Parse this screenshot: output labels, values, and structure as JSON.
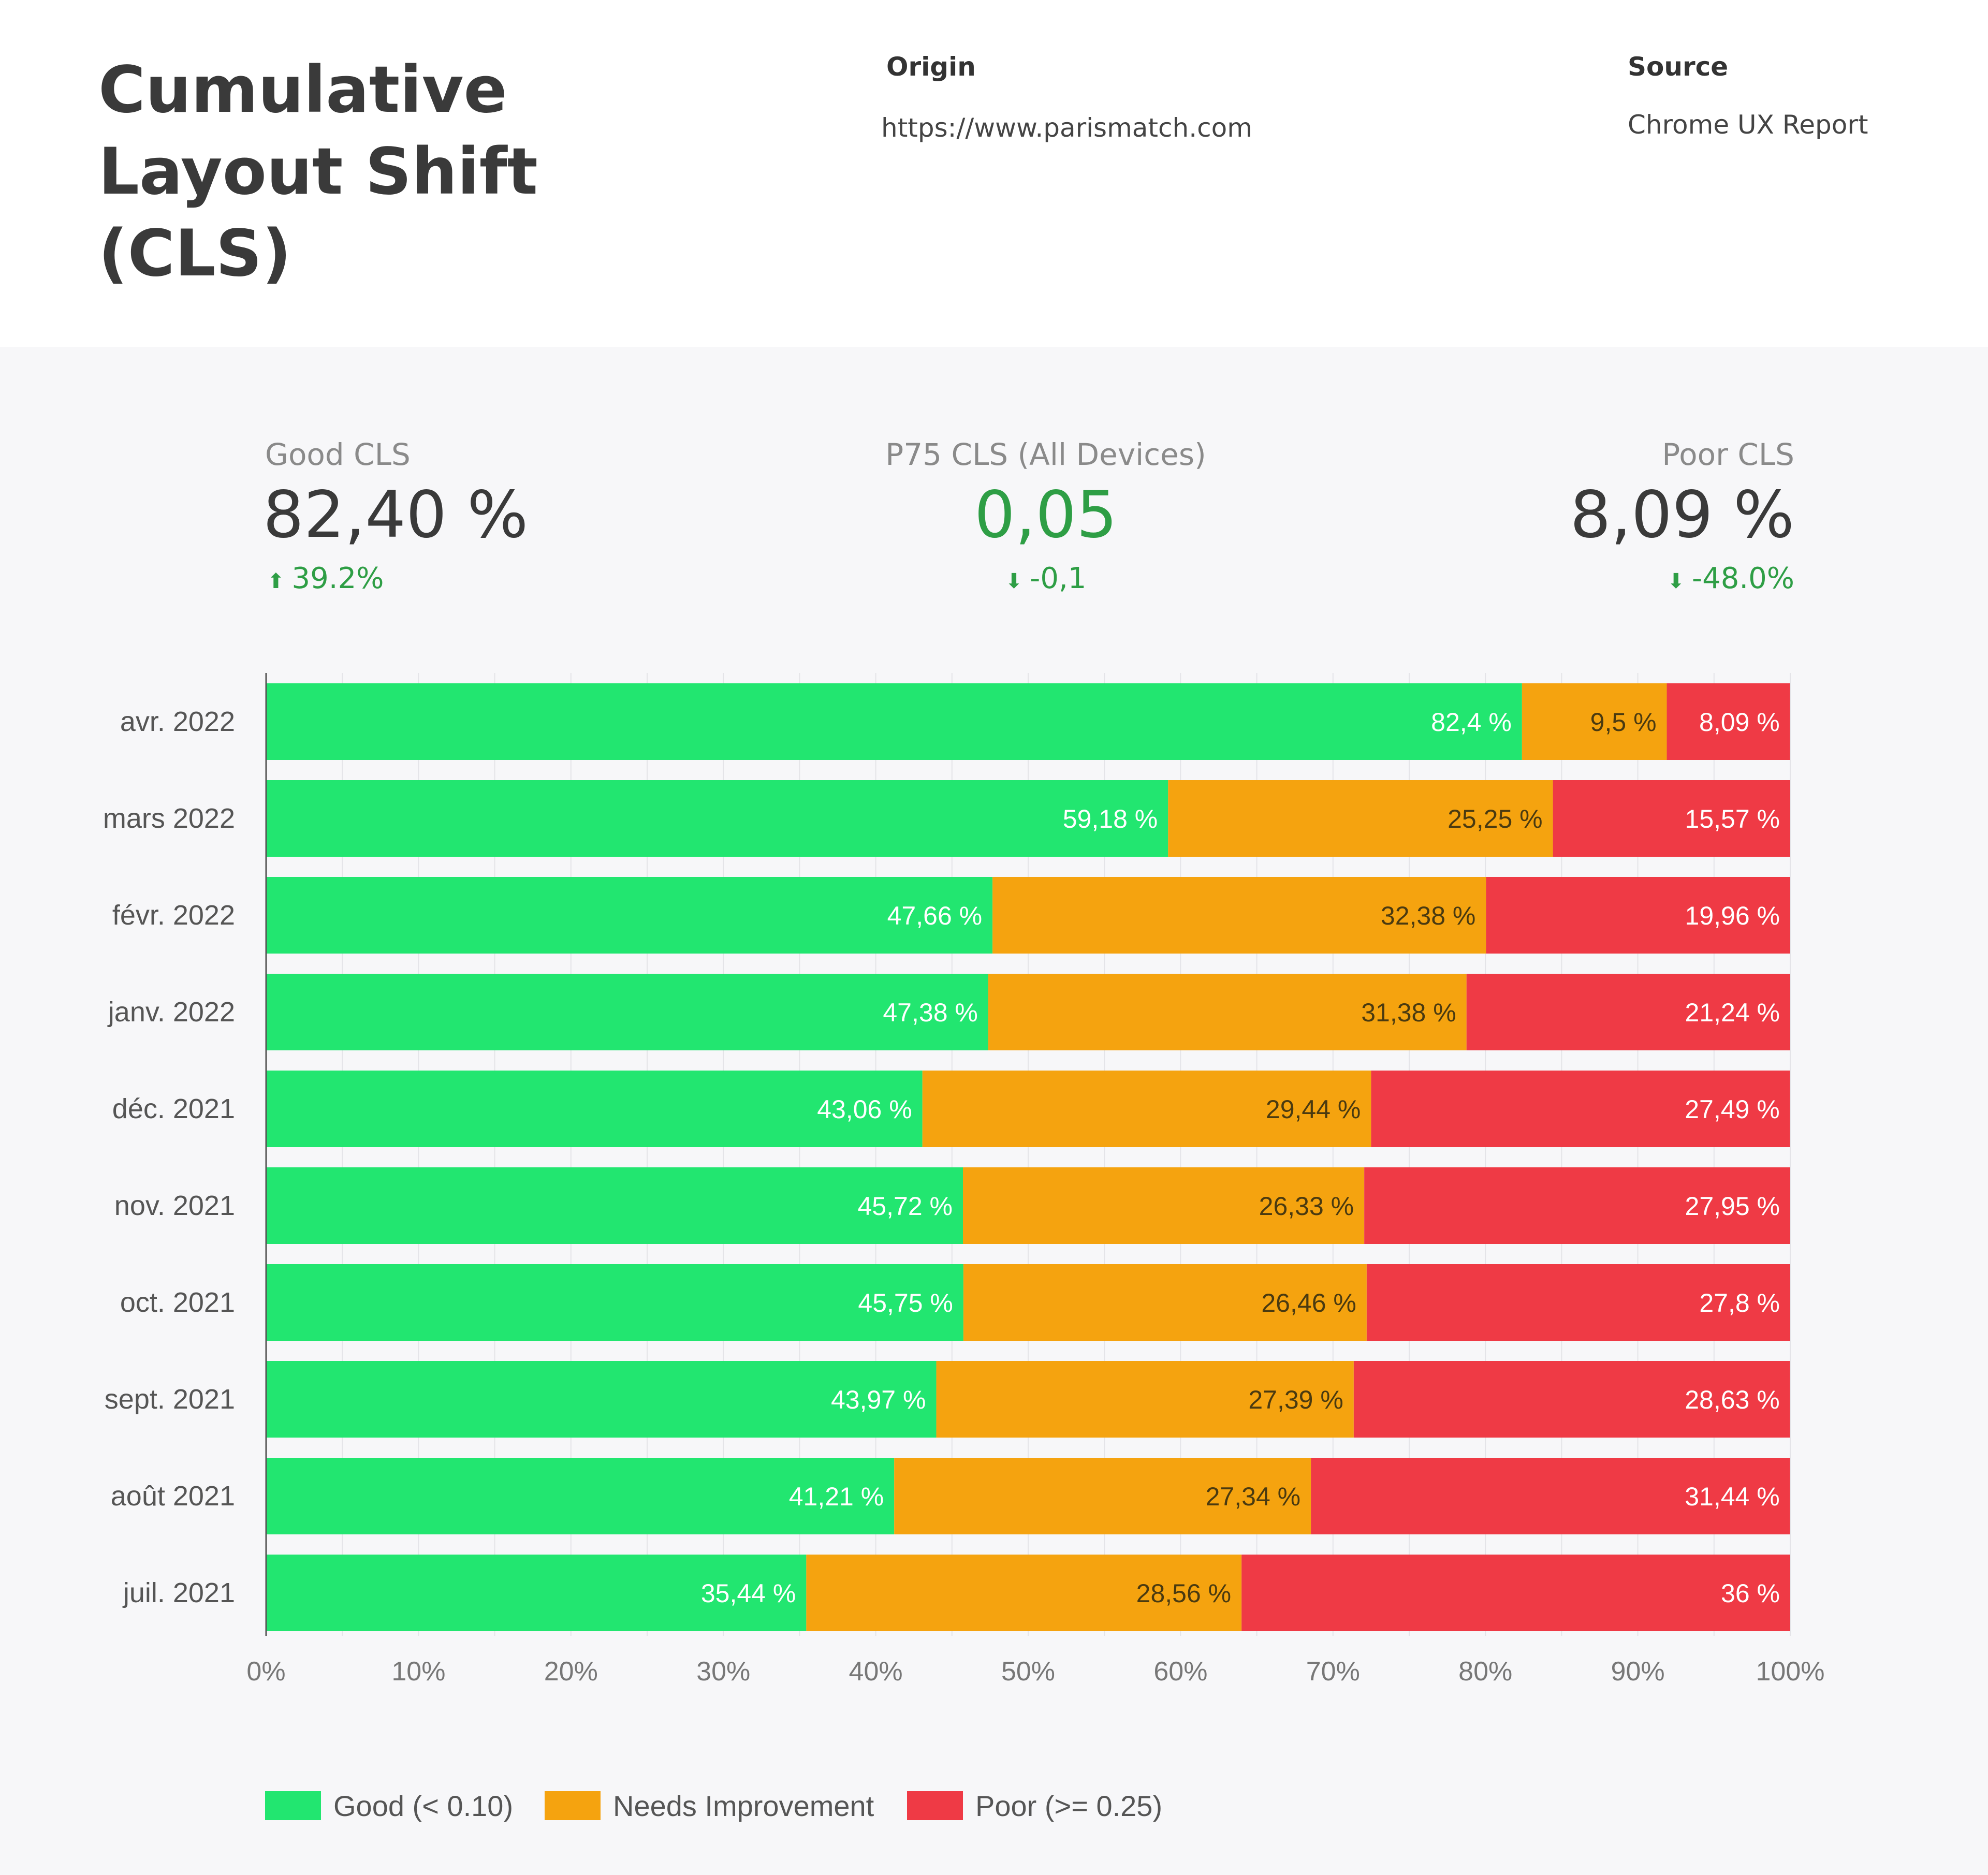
{
  "header": {
    "title": "Cumulative Layout Shift (CLS)",
    "origin_label": "Origin",
    "origin_value": "https://www.parismatch.com",
    "source_label": "Source",
    "source_value": "Chrome UX Report"
  },
  "kpis": {
    "good": {
      "label": "Good CLS",
      "value": "82,40 %",
      "change": "39.2%",
      "trend_icon": "arrow-up-icon"
    },
    "p75": {
      "label": "P75 CLS (All Devices)",
      "value": "0,05",
      "change": "-0,1",
      "trend_icon": "arrow-down-icon"
    },
    "poor": {
      "label": "Poor CLS",
      "value": "8,09 %",
      "change": "-48.0%",
      "trend_icon": "arrow-down-icon"
    }
  },
  "colors": {
    "good": "#22e670",
    "needs_improvement": "#f5a30f",
    "poor": "#ef3a45",
    "kpi_accent": "#2e9e45"
  },
  "chart_data": {
    "type": "bar",
    "orientation": "horizontal",
    "stacked": true,
    "categories": [
      "avr. 2022",
      "mars 2022",
      "févr. 2022",
      "janv. 2022",
      "déc. 2021",
      "nov. 2021",
      "oct. 2021",
      "sept. 2021",
      "août 2021",
      "juil. 2021"
    ],
    "series": [
      {
        "name": "Good (< 0.10)",
        "values": [
          82.4,
          59.18,
          47.66,
          47.38,
          43.06,
          45.72,
          45.75,
          43.97,
          41.21,
          35.44
        ],
        "labels": [
          "82,4 %",
          "59,18 %",
          "47,66 %",
          "47,38 %",
          "43,06 %",
          "45,72 %",
          "45,75 %",
          "43,97 %",
          "41,21 %",
          "35,44 %"
        ],
        "color": "#22e670"
      },
      {
        "name": "Needs Improvement",
        "values": [
          9.5,
          25.25,
          32.38,
          31.38,
          29.44,
          26.33,
          26.46,
          27.39,
          27.34,
          28.56
        ],
        "labels": [
          "9,5 %",
          "25,25 %",
          "32,38 %",
          "31,38 %",
          "29,44 %",
          "26,33 %",
          "26,46 %",
          "27,39 %",
          "27,34 %",
          "28,56 %"
        ],
        "color": "#f5a30f"
      },
      {
        "name": "Poor (>= 0.25)",
        "values": [
          8.09,
          15.57,
          19.96,
          21.24,
          27.49,
          27.95,
          27.8,
          28.63,
          31.44,
          36
        ],
        "labels": [
          "8,09 %",
          "15,57 %",
          "19,96 %",
          "21,24 %",
          "27,49 %",
          "27,95 %",
          "27,8 %",
          "28,63 %",
          "31,44 %",
          "36 %"
        ],
        "color": "#ef3a45"
      }
    ],
    "x_ticks": [
      "0%",
      "10%",
      "20%",
      "30%",
      "40%",
      "50%",
      "60%",
      "70%",
      "80%",
      "90%",
      "100%"
    ],
    "xlim": [
      0,
      100
    ],
    "grid": true,
    "legend_position": "bottom-left"
  }
}
